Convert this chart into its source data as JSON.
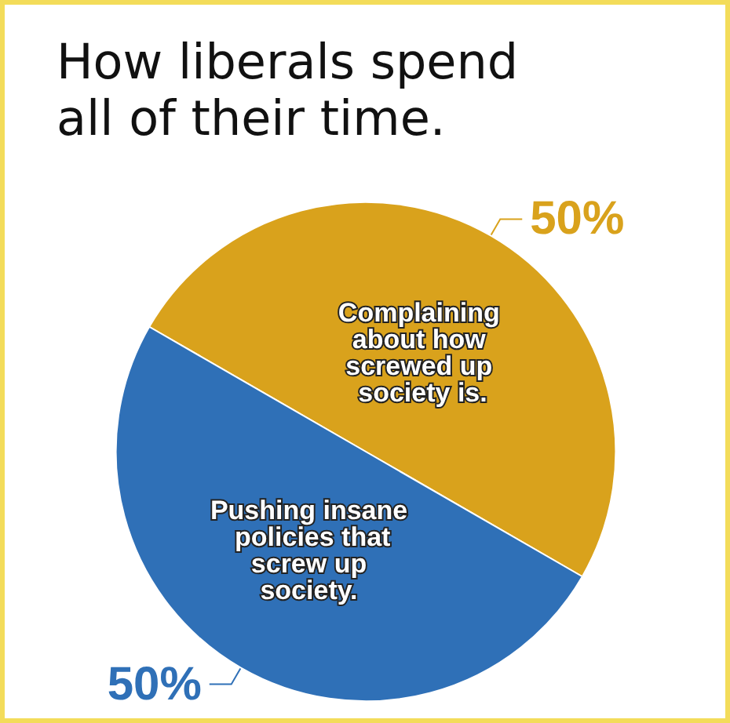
{
  "chart_data": {
    "type": "pie",
    "title": "How liberals spend all of their time.",
    "categories": [
      "Complaining about how screwed up society is.",
      "Pushing insane policies that screw up society."
    ],
    "values": [
      50,
      50
    ],
    "colors": [
      "#d9a21c",
      "#2f70b7"
    ],
    "value_labels": [
      "50%",
      "50%"
    ],
    "legend": false
  }
}
